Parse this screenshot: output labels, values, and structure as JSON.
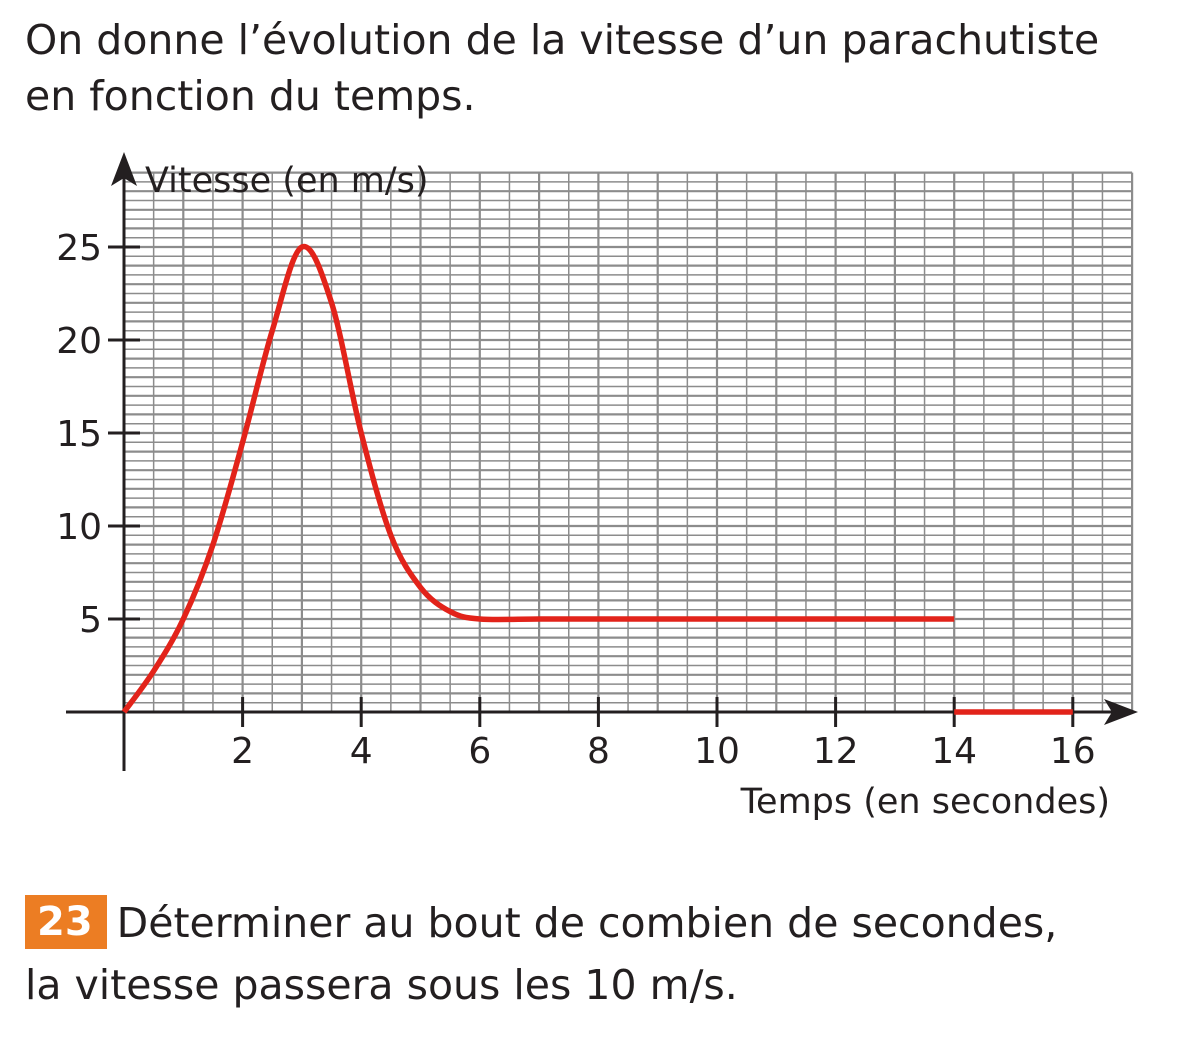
{
  "intro": {
    "line1": "On donne l’évolution de la vitesse d’un parachutiste",
    "line2": "en fonction du temps."
  },
  "chart_data": {
    "type": "line",
    "xlabel": "Temps (en secondes)",
    "ylabel": "Vitesse (en m/s)",
    "xlim": [
      0,
      17
    ],
    "ylim": [
      0,
      29
    ],
    "x_ticks": [
      2,
      4,
      6,
      8,
      10,
      12,
      14,
      16
    ],
    "y_ticks": [
      5,
      10,
      15,
      20,
      25
    ],
    "x_tick_labels": [
      "2",
      "4",
      "6",
      "8",
      "10",
      "12",
      "14",
      "16"
    ],
    "y_tick_labels": [
      "5",
      "10",
      "15",
      "20",
      "25"
    ],
    "grid": true,
    "colors": {
      "line": "#e2231a",
      "grid": "#8c8c8c",
      "axis": "#231f20"
    },
    "series": [
      {
        "x": [
          0,
          0.5,
          1,
          1.5,
          2,
          2.5,
          3,
          3.5,
          4,
          4.5,
          5,
          5.5,
          6,
          7,
          8,
          9,
          10,
          11,
          12,
          13,
          14
        ],
        "values": [
          0,
          2.2,
          5,
          9,
          14.5,
          20.5,
          25,
          22,
          15,
          9.5,
          6.7,
          5.4,
          5,
          5,
          5,
          5,
          5,
          5,
          5,
          5,
          5
        ]
      },
      {
        "x": [
          14,
          16
        ],
        "values": [
          0,
          0
        ]
      }
    ]
  },
  "question": {
    "number": "23",
    "line1": "Déterminer au bout de combien de secondes,",
    "line2": "la vitesse passera sous les 10 m/s."
  }
}
